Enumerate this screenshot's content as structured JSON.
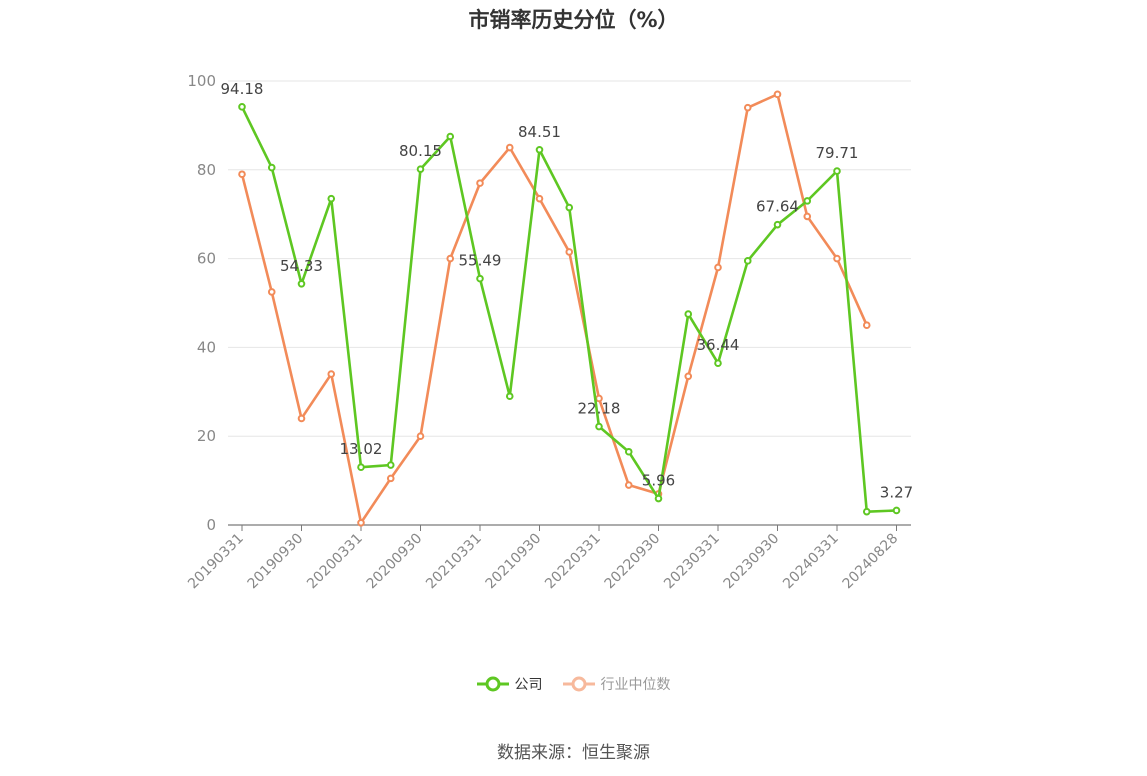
{
  "title": "市销率历史分位（%）",
  "source": "数据来源：恒生聚源",
  "colors": {
    "company": "#5ec722",
    "industry": "#f28b59",
    "axis": "#888888",
    "grid": "#e6e6e6"
  },
  "chart_data": {
    "type": "line",
    "title": "市销率历史分位（%）",
    "ylim": [
      0,
      100
    ],
    "yticks": [
      0,
      20,
      40,
      60,
      80,
      100
    ],
    "x_tick_labels": [
      "20190331",
      "20190930",
      "20200331",
      "20200930",
      "20210331",
      "20210930",
      "20220331",
      "20220930",
      "20230331",
      "20230930",
      "20240331",
      "20240828"
    ],
    "x": [
      "20190331",
      "20190630",
      "20190930",
      "20191231",
      "20200331",
      "20200630",
      "20200930",
      "20201231",
      "20210331",
      "20210630",
      "20210930",
      "20211231",
      "20220331",
      "20220630",
      "20220930",
      "20221231",
      "20230331",
      "20230630",
      "20230930",
      "20231231",
      "20240331",
      "20240630",
      "20240828"
    ],
    "series": [
      {
        "name": "公司",
        "values": [
          94.18,
          80.5,
          54.33,
          73.5,
          13.02,
          13.5,
          80.15,
          87.5,
          55.49,
          29.0,
          84.51,
          71.5,
          22.18,
          16.5,
          5.96,
          47.5,
          36.44,
          59.5,
          67.64,
          73.0,
          79.71,
          3.0,
          3.27
        ],
        "labels": [
          "94.18",
          "",
          "54.33",
          "",
          "13.02",
          "",
          "80.15",
          "",
          "55.49",
          "",
          "84.51",
          "",
          "22.18",
          "",
          "5.96",
          "",
          "36.44",
          "",
          "67.64",
          "",
          "79.71",
          "",
          "3.27"
        ]
      },
      {
        "name": "行业中位数",
        "values": [
          79.0,
          52.5,
          24.0,
          34.0,
          0.5,
          10.5,
          20.0,
          60.0,
          77.0,
          85.0,
          73.5,
          61.5,
          28.5,
          9.0,
          7.0,
          33.5,
          58.0,
          94.0,
          97.0,
          69.5,
          60.0,
          45.0,
          null
        ]
      }
    ],
    "grid": true,
    "legend_position": "bottom"
  }
}
